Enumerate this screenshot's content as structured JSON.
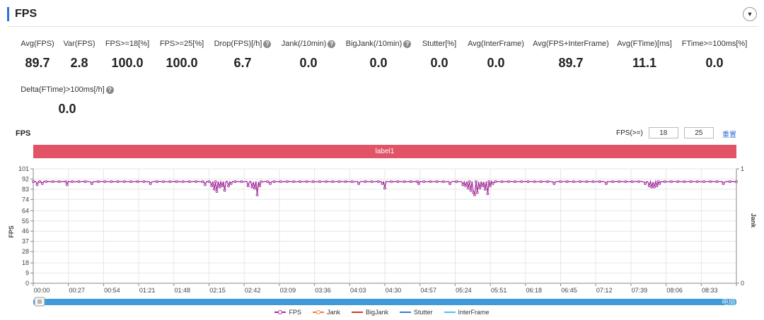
{
  "header": {
    "title": "FPS"
  },
  "metrics_row1": [
    {
      "label": "Avg(FPS)",
      "value": "89.7",
      "help": false
    },
    {
      "label": "Var(FPS)",
      "value": "2.8",
      "help": false
    },
    {
      "label": "FPS>=18[%]",
      "value": "100.0",
      "help": false
    },
    {
      "label": "FPS>=25[%]",
      "value": "100.0",
      "help": false
    },
    {
      "label": "Drop(FPS)[/h]",
      "value": "6.7",
      "help": true
    },
    {
      "label": "Jank(/10min)",
      "value": "0.0",
      "help": true
    },
    {
      "label": "BigJank(/10min)",
      "value": "0.0",
      "help": true
    },
    {
      "label": "Stutter[%]",
      "value": "0.0",
      "help": false
    },
    {
      "label": "Avg(InterFrame)",
      "value": "0.0",
      "help": false
    },
    {
      "label": "Avg(FPS+InterFrame)",
      "value": "89.7",
      "help": false
    },
    {
      "label": "Avg(FTime)[ms]",
      "value": "11.1",
      "help": false
    },
    {
      "label": "FTime>=100ms[%]",
      "value": "0.0",
      "help": false
    }
  ],
  "metrics_row2": [
    {
      "label": "Delta(FTime)>100ms[/h]",
      "value": "0.0",
      "help": true
    }
  ],
  "chart_section": {
    "title": "FPS",
    "filter_label": "FPS(>=)",
    "filter_value_1": "18",
    "filter_value_2": "25",
    "reset_label": "重置",
    "band_label": "label1"
  },
  "chart_data": {
    "type": "line",
    "ylabel": "FPS",
    "y2label": "Jank",
    "ylim": [
      0,
      101
    ],
    "yticks": [
      0,
      9,
      18,
      28,
      37,
      46,
      55,
      64,
      74,
      83,
      92,
      101
    ],
    "y2lim": [
      0,
      1
    ],
    "y2ticks": [
      0,
      1
    ],
    "xticks": [
      "00:00",
      "00:27",
      "00:54",
      "01:21",
      "01:48",
      "02:15",
      "02:42",
      "03:09",
      "03:36",
      "04:03",
      "04:30",
      "04:57",
      "05:24",
      "05:51",
      "06:18",
      "06:45",
      "07:12",
      "07:39",
      "08:06",
      "08:33"
    ],
    "x_duration_s": 540,
    "grid": true,
    "legend_position": "bottom",
    "series": [
      {
        "name": "FPS",
        "color": "#a3309b",
        "baseline": 89.7,
        "dips": [
          [
            3,
            87
          ],
          [
            7,
            88
          ],
          [
            26,
            87
          ],
          [
            45,
            88
          ],
          [
            90,
            88
          ],
          [
            132,
            87
          ],
          [
            137,
            86
          ],
          [
            139,
            83
          ],
          [
            141,
            81
          ],
          [
            143,
            85
          ],
          [
            145,
            86
          ],
          [
            147,
            82
          ],
          [
            150,
            86
          ],
          [
            152,
            88
          ],
          [
            165,
            86
          ],
          [
            168,
            85
          ],
          [
            170,
            84
          ],
          [
            172,
            78
          ],
          [
            174,
            86
          ],
          [
            182,
            88
          ],
          [
            250,
            88
          ],
          [
            268,
            88
          ],
          [
            270,
            84
          ],
          [
            296,
            88
          ],
          [
            320,
            88
          ],
          [
            330,
            87
          ],
          [
            332,
            86
          ],
          [
            334,
            84
          ],
          [
            336,
            82
          ],
          [
            338,
            80
          ],
          [
            339,
            78
          ],
          [
            341,
            80
          ],
          [
            343,
            84
          ],
          [
            345,
            86
          ],
          [
            347,
            83
          ],
          [
            349,
            79
          ],
          [
            351,
            86
          ],
          [
            353,
            88
          ],
          [
            400,
            88
          ],
          [
            440,
            88
          ],
          [
            470,
            88
          ],
          [
            473,
            86
          ],
          [
            475,
            85
          ],
          [
            477,
            85
          ],
          [
            479,
            86
          ],
          [
            481,
            88
          ],
          [
            530,
            88
          ]
        ]
      },
      {
        "name": "Jank",
        "color": "#f0803c"
      },
      {
        "name": "BigJank",
        "color": "#d9342b"
      },
      {
        "name": "Stutter",
        "color": "#3a7bd5"
      },
      {
        "name": "InterFrame",
        "color": "#4dc3e8"
      }
    ]
  },
  "scrollbar": {
    "color": "#3f9ad9"
  },
  "watermark": "电脑爱好者"
}
